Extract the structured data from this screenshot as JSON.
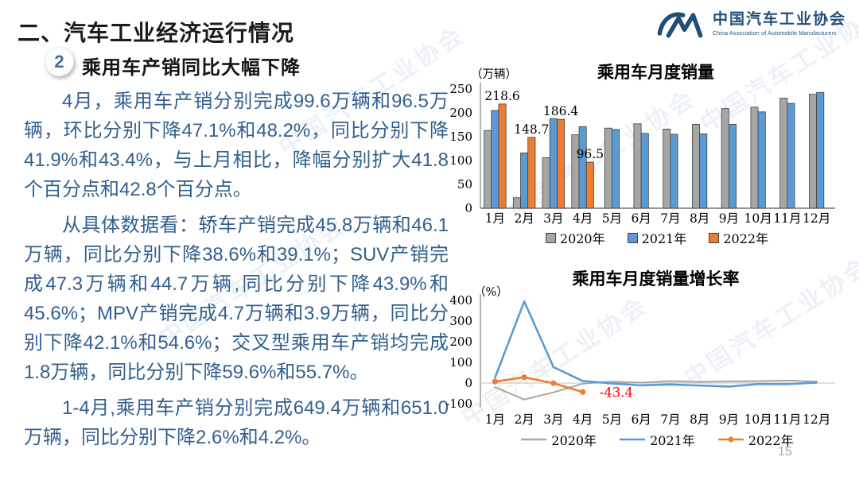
{
  "slide": {
    "section_title": "二、汽车工业经济运行情况",
    "page_number": "15",
    "watermark": "中国汽车工业协会"
  },
  "logo": {
    "name_cn": "中国汽车工业协会",
    "name_en": "China Association of Automobile Manufacturers"
  },
  "heading": {
    "badge": "2",
    "text": "乘用车产销同比大幅下降"
  },
  "paragraphs": [
    "4月，乘用车产销分别完成99.6万辆和96.5万辆，环比分别下降47.1%和48.2%，同比分别下降41.9%和43.4%，与上月相比，降幅分别扩大41.8个百分点和42.8个百分点。",
    "从具体数据看：轿车产销完成45.8万辆和46.1万辆，同比分别下降38.6%和39.1%；SUV产销完成47.3万辆和44.7万辆,同比分别下降43.9%和45.6%；MPV产销完成4.7万辆和3.9万辆，同比分别下降42.1%和54.6%；交叉型乘用车产销均完成1.8万辆，同比分别下降59.6%和55.7%。",
    "1-4月,乘用车产销分别完成649.4万辆和651.0万辆，同比分别下降2.6%和4.2%。"
  ],
  "colors": {
    "year2020": "#a6a6a6",
    "year2021": "#5b9bd5",
    "year2022": "#ed7d31",
    "annotation_red": "#ff0000",
    "body_text": "#33608f",
    "logo_navy": "#1f4e79"
  },
  "chart_data": [
    {
      "type": "bar",
      "title": "乘用车月度销量",
      "unit_label": "（万辆）",
      "categories": [
        "1月",
        "2月",
        "3月",
        "4月",
        "5月",
        "6月",
        "7月",
        "8月",
        "9月",
        "10月",
        "11月",
        "12月"
      ],
      "series": [
        {
          "name": "2020年",
          "color": "#a6a6a6",
          "values": [
            163,
            22,
            106,
            154,
            168,
            177,
            166,
            176,
            209,
            212,
            231,
            239
          ]
        },
        {
          "name": "2021年",
          "color": "#5b9bd5",
          "values": [
            205,
            116,
            188,
            171,
            165,
            157,
            155,
            156,
            176,
            202,
            220,
            243
          ]
        },
        {
          "name": "2022年",
          "color": "#ed7d31",
          "values": [
            218.6,
            148.7,
            186.4,
            96.5
          ],
          "data_labels": [
            "218.6",
            "148.7",
            "186.4",
            "96.5"
          ]
        }
      ],
      "ylim": [
        0,
        250
      ],
      "yticks": [
        0,
        50,
        100,
        150,
        200,
        250
      ],
      "grid": "off",
      "legend_position": "bottom"
    },
    {
      "type": "line",
      "title": "乘用车月度销量增长率",
      "unit_label": "（%）",
      "categories": [
        "1月",
        "2月",
        "3月",
        "4月",
        "5月",
        "6月",
        "7月",
        "8月",
        "9月",
        "10月",
        "11月",
        "12月"
      ],
      "series": [
        {
          "name": "2020年",
          "color": "#a6a6a6",
          "values": [
            -20,
            -80,
            -45,
            -3,
            7,
            2,
            9,
            6,
            8,
            9,
            12,
            7
          ]
        },
        {
          "name": "2021年",
          "color": "#5b9bd5",
          "values": [
            26,
            395,
            77,
            10,
            -2,
            -11,
            -7,
            -12,
            -17,
            -5,
            -5,
            2
          ]
        },
        {
          "name": "2022年",
          "color": "#ed7d31",
          "marker": true,
          "values": [
            7,
            28,
            -1,
            -43.4
          ],
          "annotation": {
            "text": "-43.4",
            "color": "#ff0000",
            "at_index": 3
          }
        }
      ],
      "ylim": [
        -100,
        400
      ],
      "yticks": [
        -100,
        0,
        100,
        200,
        300,
        400
      ],
      "grid": "zero-line-only",
      "legend_position": "bottom"
    }
  ]
}
